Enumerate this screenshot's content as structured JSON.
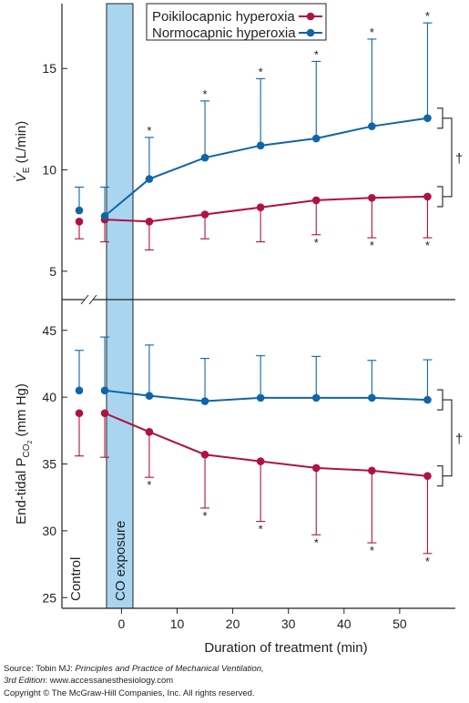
{
  "colors": {
    "poikilocapnic": "#b0123f",
    "normocapnic": "#1065a8",
    "co_band": "#a9d5f1",
    "axis": "#222222"
  },
  "chart_data": [
    {
      "type": "line",
      "panel": "top",
      "ylabel": "V̇E (L/min)",
      "ylabel_main": "V̇",
      "ylabel_sub": "E",
      "ylabel_rest": " (L/min)",
      "ylim": [
        3.6,
        18.2
      ],
      "yticks": [
        "5",
        "10",
        "15"
      ],
      "yticks_values": [
        5,
        10,
        15
      ],
      "control_label": "",
      "band_label": "",
      "significance": "†",
      "legend": [
        "Poikilocapnic hyperoxia",
        "Normocapnic hyperoxia"
      ],
      "series": [
        {
          "name": "Poikilocapnic hyperoxia",
          "color_key": "poikilocapnic",
          "control": {
            "y": 7.45,
            "lo": 6.6,
            "hi": null
          },
          "x": [
            -3,
            5,
            15,
            25,
            35,
            45,
            55
          ],
          "y": [
            7.55,
            7.45,
            7.8,
            8.15,
            8.5,
            8.62,
            8.68
          ],
          "err_lo": [
            6.45,
            6.05,
            6.6,
            6.45,
            6.8,
            6.65,
            6.65
          ],
          "err_hi": [
            null,
            null,
            null,
            null,
            null,
            null,
            null
          ],
          "stars": [
            false,
            false,
            false,
            false,
            true,
            true,
            true
          ],
          "star_side": "below"
        },
        {
          "name": "Normocapnic hyperoxia",
          "color_key": "normocapnic",
          "control": {
            "y": 8.0,
            "lo": null,
            "hi": 9.15
          },
          "x": [
            -3,
            5,
            15,
            25,
            35,
            45,
            55
          ],
          "y": [
            7.72,
            9.55,
            10.6,
            11.2,
            11.55,
            12.15,
            12.55
          ],
          "err_lo": [
            null,
            null,
            null,
            null,
            null,
            null,
            null
          ],
          "err_hi": [
            9.15,
            11.6,
            13.4,
            14.5,
            15.35,
            16.45,
            17.25
          ],
          "stars": [
            false,
            true,
            true,
            true,
            true,
            true,
            true
          ],
          "star_side": "above"
        }
      ]
    },
    {
      "type": "line",
      "panel": "bottom",
      "ylabel": "End-tidal PCO2 (mm Hg)",
      "ylabel_main": "End-tidal P",
      "ylabel_sub": "CO",
      "ylabel_subsub": "2",
      "ylabel_rest": " (mm Hg)",
      "ylim": [
        24.2,
        47.3
      ],
      "yticks": [
        "25",
        "30",
        "35",
        "40",
        "45"
      ],
      "yticks_values": [
        25,
        30,
        35,
        40,
        45
      ],
      "xlabel": "Duration of treatment (min)",
      "xticks": [
        "0",
        "10",
        "20",
        "30",
        "40",
        "50"
      ],
      "xticks_values": [
        0,
        10,
        20,
        30,
        40,
        50
      ],
      "xlim": [
        -10.7,
        60
      ],
      "control_label": "Control",
      "band_label": "CO exposure",
      "significance": "†",
      "series": [
        {
          "name": "Poikilocapnic hyperoxia",
          "color_key": "poikilocapnic",
          "control": {
            "y": 38.8,
            "lo": 35.6,
            "hi": null
          },
          "x": [
            -3,
            5,
            15,
            25,
            35,
            45,
            55
          ],
          "y": [
            38.8,
            37.4,
            35.7,
            35.2,
            34.7,
            34.5,
            34.1
          ],
          "err_lo": [
            35.5,
            34.0,
            31.7,
            30.7,
            29.7,
            29.1,
            28.3
          ],
          "err_hi": [
            null,
            null,
            null,
            null,
            null,
            null,
            null
          ],
          "stars": [
            false,
            true,
            true,
            true,
            true,
            true,
            true
          ],
          "star_side": "below"
        },
        {
          "name": "Normocapnic hyperoxia",
          "color_key": "normocapnic",
          "control": {
            "y": 40.5,
            "lo": null,
            "hi": 43.5
          },
          "x": [
            -3,
            5,
            15,
            25,
            35,
            45,
            55
          ],
          "y": [
            40.5,
            40.1,
            39.7,
            39.95,
            39.95,
            39.95,
            39.8
          ],
          "err_lo": [
            null,
            null,
            null,
            null,
            null,
            null,
            null
          ],
          "err_hi": [
            44.5,
            43.9,
            42.9,
            43.1,
            43.05,
            42.75,
            42.8
          ],
          "stars": [
            false,
            false,
            false,
            false,
            false,
            false,
            false
          ],
          "star_side": "above"
        }
      ]
    }
  ],
  "source": {
    "line1_prefix": "Source: Tobin MJ: ",
    "line1_title": "Principles and Practice of Mechanical Ventilation,",
    "line2_edition": "3rd Edition",
    "line2_rest": ": www.accessanesthesiology.com",
    "line3": "Copyright © The McGraw-Hill Companies, Inc. All rights reserved."
  }
}
